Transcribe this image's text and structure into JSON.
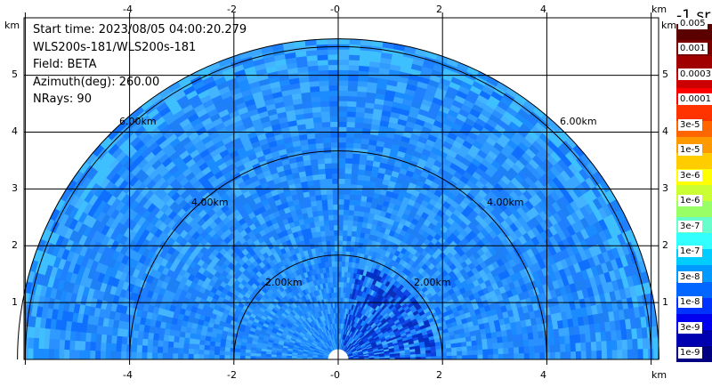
{
  "info": {
    "start_time": "Start time: 2023/08/05 04:00:20.279",
    "instrument": "WLS200s-181/WLS200s-181",
    "field": "Field: BETA",
    "azimuth": "Azimuth(deg): 260.00",
    "nrays": "NRays: 90"
  },
  "axes": {
    "unit_label": "km",
    "x_ticks": [
      "-4",
      "-2",
      "-0",
      "2",
      "4"
    ],
    "y_ticks": [
      "1",
      "2",
      "3",
      "4",
      "5"
    ]
  },
  "range_rings": [
    "2.00km",
    "4.00km",
    "6.00km"
  ],
  "colorbar": {
    "title": "-1 sr",
    "labels": [
      "0.005",
      "0.001",
      "0.0003",
      "0.0001",
      "3e-5",
      "1e-5",
      "3e-6",
      "1e-6",
      "3e-7",
      "1e-7",
      "3e-8",
      "1e-8",
      "3e-9",
      "1e-9"
    ],
    "colors": [
      "#5a0000",
      "#7a0000",
      "#a00000",
      "#cc0000",
      "#ff0000",
      "#ff3300",
      "#ff6600",
      "#ff9900",
      "#ffcc00",
      "#ffff00",
      "#ccff33",
      "#99ff66",
      "#66ffcc",
      "#33ffff",
      "#00ccff",
      "#0099ff",
      "#0066ff",
      "#0033ff",
      "#0000ee",
      "#0000b0",
      "#000080"
    ]
  }
}
